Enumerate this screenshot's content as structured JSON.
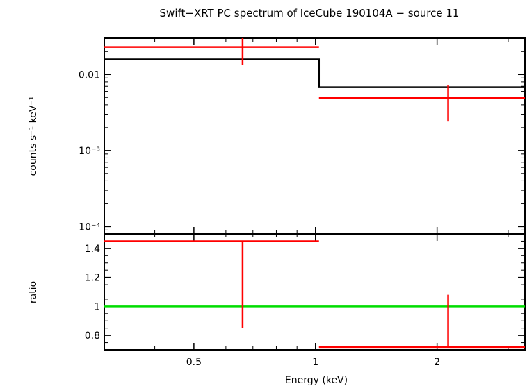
{
  "chart_data": [
    {
      "type": "scatter",
      "panel": "spectrum",
      "title": "Swift−XRT PC spectrum of IceCube 190104A − source 11",
      "ylabel": "counts s⁻¹ keV⁻¹",
      "x_scale": "log",
      "y_scale": "log",
      "xlim": [
        0.3,
        3.3
      ],
      "ylim": [
        8e-05,
        0.03
      ],
      "y_tick_labels": [
        "0.01",
        "10⁻³",
        "10⁻⁴"
      ],
      "y_tick_values": [
        0.01,
        0.001,
        0.0001
      ],
      "series": [
        {
          "kind": "data",
          "color": "#ff0000",
          "points": [
            {
              "x": 0.66,
              "xlo": 0.3,
              "xhi": 1.02,
              "y": 0.023,
              "ylo": 0.0135,
              "yhi": 0.033
            },
            {
              "x": 2.13,
              "xlo": 1.02,
              "xhi": 3.3,
              "y": 0.0049,
              "ylo": 0.0024,
              "yhi": 0.0073
            }
          ]
        },
        {
          "kind": "model",
          "color": "#000000",
          "steps": [
            {
              "xlo": 0.3,
              "xhi": 1.02,
              "y": 0.0158
            },
            {
              "xlo": 1.02,
              "xhi": 3.3,
              "y": 0.0068
            }
          ]
        }
      ]
    },
    {
      "type": "scatter",
      "panel": "ratio",
      "ylabel": "ratio",
      "xlabel": "Energy (keV)",
      "x_scale": "log",
      "xlim": [
        0.3,
        3.3
      ],
      "ylim": [
        0.7,
        1.5
      ],
      "x_tick_labels": [
        "0.5",
        "1",
        "2"
      ],
      "x_tick_values": [
        0.5,
        1,
        2
      ],
      "y_tick_labels": [
        "1.4",
        "1.2",
        "1",
        "0.8"
      ],
      "y_tick_values": [
        1.4,
        1.2,
        1.0,
        0.8
      ],
      "reference_line": {
        "y": 1,
        "color": "#00dd00"
      },
      "series": [
        {
          "kind": "data",
          "color": "#ff0000",
          "points": [
            {
              "x": 0.66,
              "xlo": 0.3,
              "xhi": 1.02,
              "y": 1.45,
              "ylo": 0.85,
              "yhi": 1.45
            },
            {
              "x": 2.13,
              "xlo": 1.02,
              "xhi": 3.3,
              "y": 0.72,
              "ylo": 0.72,
              "yhi": 1.08
            }
          ]
        }
      ]
    }
  ]
}
